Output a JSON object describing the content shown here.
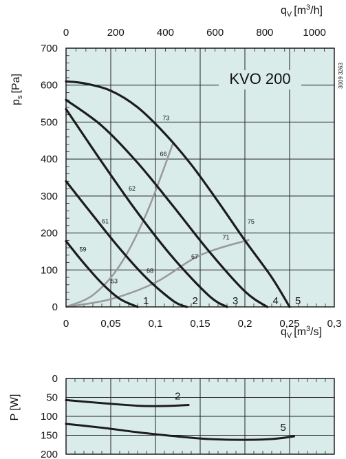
{
  "chart_data": [
    {
      "type": "line",
      "title": "KVO 200",
      "code": "3009 3263",
      "x_bottom": {
        "label": "q",
        "sub": "V",
        "unit": "[m",
        "sup": "3",
        "unit_end": "/s]",
        "range": [
          0,
          0.3
        ],
        "ticks": [
          0,
          0.05,
          0.1,
          0.15,
          0.2,
          0.25,
          0.3
        ],
        "tick_labels": [
          "0",
          "0,05",
          "0,1",
          "0,15",
          "0,2",
          "0,25",
          "0,3"
        ]
      },
      "x_top": {
        "label": "q",
        "sub": "V",
        "unit": "[m",
        "sup": "3",
        "unit_end": "/h]",
        "range": [
          0,
          1080
        ],
        "ticks": [
          0,
          200,
          400,
          600,
          800,
          1000
        ],
        "tick_labels": [
          "0",
          "200",
          "400",
          "600",
          "800",
          "1000"
        ]
      },
      "y": {
        "label": "p",
        "sub": "s",
        "unit": "[Pa]",
        "range": [
          0,
          700
        ],
        "ticks": [
          0,
          100,
          200,
          300,
          400,
          500,
          600,
          700
        ],
        "tick_labels": [
          "0",
          "100",
          "200",
          "300",
          "400",
          "500",
          "600",
          "700"
        ]
      },
      "grid": true,
      "background": "#d9ece9",
      "curve_color": "#1c1c1c",
      "system_color": "#9a9a9a",
      "series": [
        {
          "name": "1",
          "x": [
            0,
            0.02,
            0.04,
            0.06,
            0.08
          ],
          "y": [
            178,
            118,
            64,
            22,
            0
          ]
        },
        {
          "name": "2",
          "x": [
            0,
            0.03,
            0.06,
            0.09,
            0.12,
            0.135
          ],
          "y": [
            340,
            248,
            158,
            78,
            16,
            0
          ]
        },
        {
          "name": "3",
          "x": [
            0,
            0.04,
            0.08,
            0.12,
            0.16,
            0.18
          ],
          "y": [
            535,
            392,
            255,
            132,
            30,
            0
          ]
        },
        {
          "name": "4",
          "x": [
            0,
            0.04,
            0.08,
            0.12,
            0.16,
            0.2,
            0.225
          ],
          "y": [
            560,
            490,
            390,
            272,
            150,
            42,
            0
          ]
        },
        {
          "name": "5",
          "x": [
            0,
            0.02,
            0.05,
            0.08,
            0.11,
            0.14,
            0.17,
            0.2,
            0.23,
            0.25
          ],
          "y": [
            610,
            605,
            585,
            540,
            470,
            385,
            285,
            180,
            80,
            0
          ]
        }
      ],
      "system_curves": [
        {
          "x": [
            0,
            0.03,
            0.06,
            0.09,
            0.12
          ],
          "y": [
            0,
            32,
            112,
            253,
            445
          ]
        },
        {
          "x": [
            0,
            0.05,
            0.1,
            0.15,
            0.205
          ],
          "y": [
            0,
            21,
            66,
            140,
            182
          ]
        }
      ],
      "annotations": [
        {
          "text": "59",
          "x": 0.015,
          "y": 150
        },
        {
          "text": "53",
          "x": 0.05,
          "y": 64
        },
        {
          "text": "61",
          "x": 0.04,
          "y": 226
        },
        {
          "text": "62",
          "x": 0.07,
          "y": 315
        },
        {
          "text": "68",
          "x": 0.09,
          "y": 92
        },
        {
          "text": "66",
          "x": 0.105,
          "y": 408
        },
        {
          "text": "73",
          "x": 0.108,
          "y": 505
        },
        {
          "text": "67",
          "x": 0.14,
          "y": 130
        },
        {
          "text": "71",
          "x": 0.175,
          "y": 182
        },
        {
          "text": "75",
          "x": 0.203,
          "y": 225
        }
      ]
    },
    {
      "type": "line",
      "y": {
        "label": "P [W]",
        "range": [
          0,
          200
        ],
        "ticks": [
          0,
          50,
          100,
          150,
          200
        ],
        "tick_labels": [
          "0",
          "50",
          "100",
          "150",
          "200"
        ]
      },
      "x_range": [
        0,
        0.3
      ],
      "grid": true,
      "background": "#d9ece9",
      "series": [
        {
          "name": "2",
          "x": [
            0,
            0.04,
            0.08,
            0.1,
            0.12,
            0.137
          ],
          "y": [
            57,
            65,
            72,
            73,
            72,
            70
          ]
        },
        {
          "name": "5",
          "x": [
            0,
            0.04,
            0.08,
            0.12,
            0.16,
            0.2,
            0.23,
            0.255
          ],
          "y": [
            120,
            130,
            142,
            152,
            160,
            162,
            160,
            153
          ]
        }
      ]
    }
  ]
}
